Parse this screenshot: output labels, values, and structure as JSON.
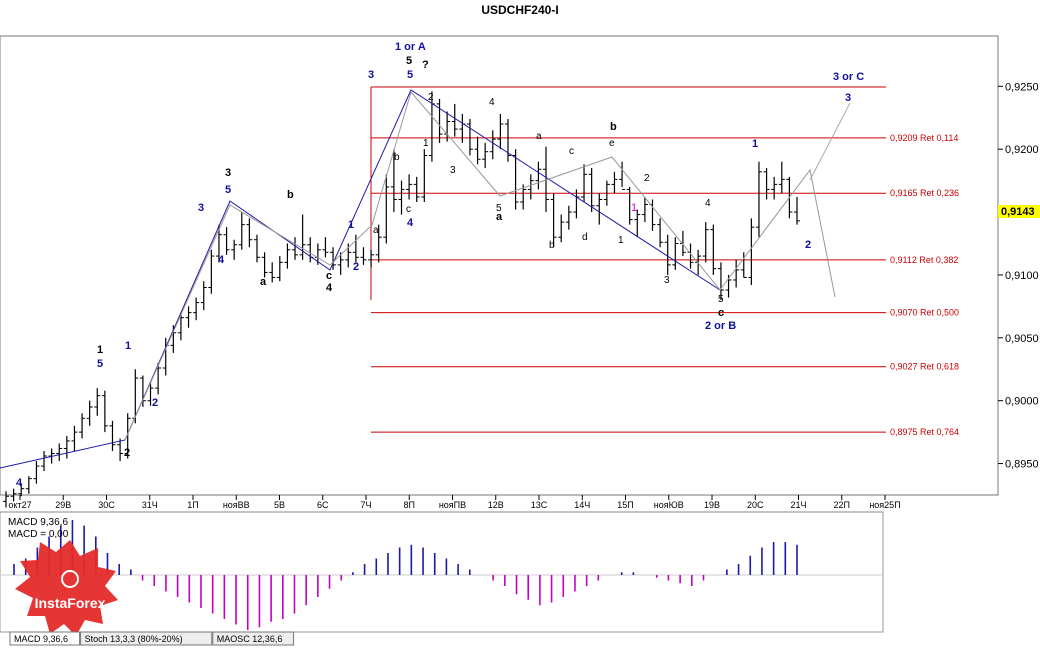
{
  "title": "USDCHF240-I",
  "price_badge": "0,9143",
  "colors": {
    "bull": "#1a1aa8",
    "bear": "#c400c4",
    "fib": "#cc0000",
    "wave_blue": "#1010a0",
    "accent": "#e52a2a"
  },
  "chart_data": {
    "type": "line",
    "title": "USDCHF240-I",
    "yticks": [
      "0,9250",
      "0,9200",
      "0,9150",
      "0,9100",
      "0,9050",
      "0,9000",
      "0,8950"
    ],
    "ylim": [
      0.8925,
      0.929
    ],
    "xticks": [
      "окт27",
      "29В",
      "30С",
      "31Ч",
      "1П",
      "нояВВ",
      "5В",
      "6С",
      "7Ч",
      "8П",
      "нояПВ",
      "12В",
      "13С",
      "14Ч",
      "15П",
      "нояЮВ",
      "19В",
      "20С",
      "21Ч",
      "22П",
      "ноя25П"
    ],
    "fib_levels": [
      {
        "price": 0.9209,
        "label": "0,9209 Ret 0,114"
      },
      {
        "price": 0.9165,
        "label": "0,9165 Ret 0,236"
      },
      {
        "price": 0.9112,
        "label": "0,9112 Ret 0,382"
      },
      {
        "price": 0.907,
        "label": "0,9070 Ret 0,500"
      },
      {
        "price": 0.9027,
        "label": "0,9027 Ret 0,618"
      },
      {
        "price": 0.8975,
        "label": "0,8975 Ret 0,764"
      }
    ],
    "ohlc": [
      [
        0.892,
        0.8928,
        0.8915,
        0.8924
      ],
      [
        0.8924,
        0.893,
        0.892,
        0.8926
      ],
      [
        0.8926,
        0.8934,
        0.8924,
        0.893
      ],
      [
        0.893,
        0.894,
        0.8926,
        0.8938
      ],
      [
        0.8938,
        0.8952,
        0.8934,
        0.8948
      ],
      [
        0.8948,
        0.896,
        0.8944,
        0.8956
      ],
      [
        0.8956,
        0.8962,
        0.895,
        0.8958
      ],
      [
        0.8958,
        0.8966,
        0.8952,
        0.8962
      ],
      [
        0.8962,
        0.8972,
        0.8954,
        0.8968
      ],
      [
        0.8968,
        0.898,
        0.896,
        0.8975
      ],
      [
        0.8975,
        0.899,
        0.897,
        0.8986
      ],
      [
        0.8986,
        0.9,
        0.898,
        0.8995
      ],
      [
        0.8995,
        0.901,
        0.8988,
        0.9004
      ],
      [
        0.9004,
        0.9008,
        0.8975,
        0.898
      ],
      [
        0.898,
        0.8984,
        0.896,
        0.8965
      ],
      [
        0.8965,
        0.897,
        0.8952,
        0.8958
      ],
      [
        0.8958,
        0.899,
        0.8954,
        0.8986
      ],
      [
        0.8986,
        0.9025,
        0.8982,
        0.9018
      ],
      [
        0.9018,
        0.902,
        0.8995,
        0.9
      ],
      [
        0.9,
        0.9015,
        0.8996,
        0.901
      ],
      [
        0.901,
        0.903,
        0.9005,
        0.9026
      ],
      [
        0.9026,
        0.905,
        0.902,
        0.9044
      ],
      [
        0.9044,
        0.906,
        0.9038,
        0.9054
      ],
      [
        0.9054,
        0.907,
        0.9048,
        0.9066
      ],
      [
        0.9066,
        0.9075,
        0.9058,
        0.907
      ],
      [
        0.907,
        0.9082,
        0.9064,
        0.9078
      ],
      [
        0.9078,
        0.9095,
        0.9072,
        0.909
      ],
      [
        0.909,
        0.912,
        0.9085,
        0.9115
      ],
      [
        0.9115,
        0.914,
        0.911,
        0.9132
      ],
      [
        0.9132,
        0.9138,
        0.9116,
        0.912
      ],
      [
        0.912,
        0.9128,
        0.9112,
        0.9124
      ],
      [
        0.9124,
        0.915,
        0.912,
        0.914
      ],
      [
        0.914,
        0.9145,
        0.9122,
        0.9128
      ],
      [
        0.9128,
        0.9132,
        0.911,
        0.9114
      ],
      [
        0.9114,
        0.9118,
        0.9098,
        0.9102
      ],
      [
        0.9102,
        0.911,
        0.9094,
        0.9098
      ],
      [
        0.9098,
        0.9115,
        0.9095,
        0.911
      ],
      [
        0.911,
        0.9125,
        0.9105,
        0.912
      ],
      [
        0.912,
        0.913,
        0.9112,
        0.9116
      ],
      [
        0.9116,
        0.9148,
        0.9112,
        0.9124
      ],
      [
        0.9124,
        0.913,
        0.911,
        0.9114
      ],
      [
        0.9114,
        0.9125,
        0.9108,
        0.912
      ],
      [
        0.912,
        0.913,
        0.9114,
        0.9118
      ],
      [
        0.9118,
        0.9122,
        0.9104,
        0.9108
      ],
      [
        0.9108,
        0.9118,
        0.91,
        0.9112
      ],
      [
        0.9112,
        0.9125,
        0.9106,
        0.9118
      ],
      [
        0.9118,
        0.9132,
        0.911,
        0.9114
      ],
      [
        0.9114,
        0.9122,
        0.9108,
        0.9112
      ],
      [
        0.9112,
        0.912,
        0.9106,
        0.9116
      ],
      [
        0.9116,
        0.914,
        0.911,
        0.913
      ],
      [
        0.913,
        0.918,
        0.9125,
        0.917
      ],
      [
        0.917,
        0.92,
        0.915,
        0.916
      ],
      [
        0.916,
        0.9175,
        0.9148,
        0.9168
      ],
      [
        0.9168,
        0.918,
        0.916,
        0.9172
      ],
      [
        0.9172,
        0.9178,
        0.9158,
        0.9162
      ],
      [
        0.9162,
        0.92,
        0.9158,
        0.9195
      ],
      [
        0.9195,
        0.9246,
        0.919,
        0.9236
      ],
      [
        0.9236,
        0.924,
        0.9205,
        0.9212
      ],
      [
        0.9212,
        0.923,
        0.9206,
        0.9222
      ],
      [
        0.9222,
        0.9236,
        0.921,
        0.9216
      ],
      [
        0.9216,
        0.9228,
        0.9205,
        0.922
      ],
      [
        0.922,
        0.9224,
        0.9195,
        0.92
      ],
      [
        0.92,
        0.921,
        0.9188,
        0.9192
      ],
      [
        0.9192,
        0.9205,
        0.9185,
        0.9198
      ],
      [
        0.9198,
        0.9215,
        0.9192,
        0.9208
      ],
      [
        0.9208,
        0.9228,
        0.92,
        0.922
      ],
      [
        0.922,
        0.9224,
        0.919,
        0.9195
      ],
      [
        0.9195,
        0.92,
        0.9152,
        0.9158
      ],
      [
        0.9158,
        0.9172,
        0.9152,
        0.9168
      ],
      [
        0.9168,
        0.918,
        0.916,
        0.9175
      ],
      [
        0.9175,
        0.919,
        0.9168,
        0.9184
      ],
      [
        0.9184,
        0.9202,
        0.915,
        0.916
      ],
      [
        0.916,
        0.9165,
        0.9122,
        0.913
      ],
      [
        0.913,
        0.9148,
        0.9126,
        0.9142
      ],
      [
        0.9142,
        0.9155,
        0.9136,
        0.915
      ],
      [
        0.915,
        0.9168,
        0.9145,
        0.9162
      ],
      [
        0.9162,
        0.9188,
        0.9158,
        0.918
      ],
      [
        0.918,
        0.9185,
        0.915,
        0.9155
      ],
      [
        0.9155,
        0.9165,
        0.914,
        0.916
      ],
      [
        0.916,
        0.9175,
        0.9155,
        0.9172
      ],
      [
        0.9172,
        0.9182,
        0.9165,
        0.9176
      ],
      [
        0.9176,
        0.919,
        0.917,
        0.9168
      ],
      [
        0.9168,
        0.917,
        0.914,
        0.9144
      ],
      [
        0.9144,
        0.9152,
        0.913,
        0.9148
      ],
      [
        0.9148,
        0.9162,
        0.9142,
        0.9156
      ],
      [
        0.9156,
        0.916,
        0.9135,
        0.914
      ],
      [
        0.914,
        0.9145,
        0.9122,
        0.9126
      ],
      [
        0.9126,
        0.9132,
        0.91,
        0.9108
      ],
      [
        0.9108,
        0.913,
        0.9104,
        0.9125
      ],
      [
        0.9125,
        0.9135,
        0.9115,
        0.9118
      ],
      [
        0.9118,
        0.9125,
        0.9105,
        0.911
      ],
      [
        0.911,
        0.912,
        0.91,
        0.9115
      ],
      [
        0.9115,
        0.9142,
        0.911,
        0.9136
      ],
      [
        0.9136,
        0.914,
        0.91,
        0.9105
      ],
      [
        0.9105,
        0.911,
        0.908,
        0.9088
      ],
      [
        0.9088,
        0.91,
        0.9082,
        0.9096
      ],
      [
        0.9096,
        0.9112,
        0.909,
        0.9104
      ],
      [
        0.9104,
        0.9118,
        0.9098,
        0.9098
      ],
      [
        0.9098,
        0.9145,
        0.9092,
        0.9138
      ],
      [
        0.9138,
        0.919,
        0.913,
        0.9182
      ],
      [
        0.9182,
        0.9185,
        0.916,
        0.9168
      ],
      [
        0.9168,
        0.9178,
        0.916,
        0.9172
      ],
      [
        0.9172,
        0.919,
        0.9165,
        0.9176
      ],
      [
        0.9176,
        0.9178,
        0.9145,
        0.915
      ],
      [
        0.915,
        0.9162,
        0.914,
        0.9143
      ]
    ],
    "macd_label": "MACD 9,36,6",
    "macd_label2": "MACD = 0,00",
    "macd": [
      0.2,
      0.3,
      0.5,
      0.7,
      0.9,
      1.0,
      0.9,
      0.7,
      0.4,
      0.2,
      0.1,
      -0.1,
      -0.2,
      -0.3,
      -0.4,
      -0.5,
      -0.6,
      -0.7,
      -0.8,
      -0.9,
      -1.0,
      -0.95,
      -0.85,
      -0.8,
      -0.7,
      -0.55,
      -0.4,
      -0.25,
      -0.1,
      0.05,
      0.2,
      0.3,
      0.4,
      0.5,
      0.55,
      0.5,
      0.4,
      0.3,
      0.2,
      0.1,
      0.0,
      -0.1,
      -0.2,
      -0.35,
      -0.45,
      -0.55,
      -0.5,
      -0.4,
      -0.3,
      -0.2,
      -0.1,
      0.0,
      0.05,
      0.05,
      0.0,
      -0.05,
      -0.1,
      -0.15,
      -0.2,
      -0.1,
      0.0,
      0.1,
      0.2,
      0.35,
      0.5,
      0.6,
      0.6,
      0.55
    ],
    "tabs": [
      "MACD 9,36,6",
      "Stoch 13,3,3 (80%-20%)",
      "MAOSC 12,36,6"
    ]
  }
}
